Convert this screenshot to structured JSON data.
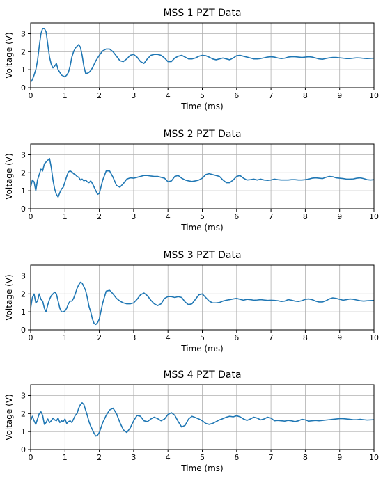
{
  "chart_data": [
    {
      "type": "line",
      "title": "MSS 1 PZT Data",
      "xlabel": "Time (ms)",
      "ylabel": "Voltage (V)",
      "xlim": [
        0,
        10
      ],
      "ylim": [
        0,
        3.6
      ],
      "xticks": [
        "0",
        "1",
        "2",
        "3",
        "4",
        "5",
        "6",
        "7",
        "8",
        "9",
        "10"
      ],
      "yticks": [
        "0",
        "1",
        "2",
        "3"
      ],
      "grid": true,
      "color": "#1f77b4",
      "series": [
        {
          "x": [
            0,
            0.05,
            0.1,
            0.15,
            0.2,
            0.25,
            0.3,
            0.35,
            0.4,
            0.45,
            0.5,
            0.55,
            0.6,
            0.65,
            0.7,
            0.75,
            0.8,
            0.85,
            0.9,
            0.95,
            1.0,
            1.05,
            1.1,
            1.15,
            1.2,
            1.25,
            1.3,
            1.35,
            1.4,
            1.45,
            1.5,
            1.55,
            1.6,
            1.65,
            1.7,
            1.75,
            1.8,
            1.85,
            1.9,
            1.95,
            2.0,
            2.1,
            2.2,
            2.3,
            2.4,
            2.5,
            2.6,
            2.7,
            2.8,
            2.9,
            3.0,
            3.1,
            3.2,
            3.3,
            3.4,
            3.5,
            3.6,
            3.7,
            3.8,
            3.9,
            4.0,
            4.1,
            4.2,
            4.3,
            4.4,
            4.5,
            4.6,
            4.7,
            4.8,
            4.9,
            5.0,
            5.1,
            5.2,
            5.3,
            5.4,
            5.5,
            5.6,
            5.7,
            5.8,
            5.9,
            6.0,
            6.1,
            6.2,
            6.3,
            6.4,
            6.5,
            6.6,
            6.7,
            6.8,
            6.9,
            7.0,
            7.1,
            7.2,
            7.3,
            7.4,
            7.5,
            7.6,
            7.7,
            7.8,
            7.9,
            8.0,
            8.1,
            8.2,
            8.3,
            8.4,
            8.5,
            8.6,
            8.7,
            8.8,
            8.9,
            9.0,
            9.1,
            9.2,
            9.3,
            9.4,
            9.5,
            9.6,
            9.7,
            9.8,
            9.9,
            10.0
          ],
          "y": [
            0.3,
            0.45,
            0.7,
            1.0,
            1.5,
            2.3,
            3.0,
            3.3,
            3.3,
            3.1,
            2.4,
            1.7,
            1.3,
            1.1,
            1.2,
            1.35,
            1.0,
            0.85,
            0.7,
            0.65,
            0.6,
            0.7,
            0.85,
            1.2,
            1.7,
            2.0,
            2.2,
            2.3,
            2.4,
            2.25,
            1.8,
            1.2,
            0.8,
            0.8,
            0.85,
            0.95,
            1.1,
            1.3,
            1.5,
            1.65,
            1.8,
            2.05,
            2.15,
            2.15,
            2.0,
            1.75,
            1.5,
            1.45,
            1.6,
            1.8,
            1.85,
            1.7,
            1.45,
            1.35,
            1.6,
            1.8,
            1.85,
            1.85,
            1.8,
            1.65,
            1.45,
            1.45,
            1.65,
            1.75,
            1.8,
            1.7,
            1.6,
            1.6,
            1.65,
            1.75,
            1.8,
            1.78,
            1.7,
            1.6,
            1.55,
            1.6,
            1.65,
            1.6,
            1.55,
            1.65,
            1.78,
            1.8,
            1.75,
            1.7,
            1.65,
            1.6,
            1.6,
            1.62,
            1.66,
            1.7,
            1.72,
            1.7,
            1.65,
            1.62,
            1.64,
            1.7,
            1.72,
            1.72,
            1.7,
            1.68,
            1.7,
            1.72,
            1.7,
            1.65,
            1.6,
            1.58,
            1.62,
            1.66,
            1.68,
            1.68,
            1.66,
            1.64,
            1.62,
            1.62,
            1.64,
            1.66,
            1.65,
            1.63,
            1.62,
            1.63,
            1.64
          ]
        }
      ]
    },
    {
      "type": "line",
      "title": "MSS 2 PZT Data",
      "xlabel": "Time (ms)",
      "ylabel": "Voltage (V)",
      "xlim": [
        0,
        10
      ],
      "ylim": [
        0,
        3.6
      ],
      "xticks": [
        "0",
        "1",
        "2",
        "3",
        "4",
        "5",
        "6",
        "7",
        "8",
        "9",
        "10"
      ],
      "yticks": [
        "0",
        "1",
        "2",
        "3"
      ],
      "grid": true,
      "color": "#1f77b4",
      "series": [
        {
          "x": [
            0,
            0.05,
            0.1,
            0.15,
            0.2,
            0.25,
            0.3,
            0.35,
            0.4,
            0.45,
            0.5,
            0.55,
            0.6,
            0.65,
            0.7,
            0.75,
            0.8,
            0.85,
            0.9,
            0.95,
            1.0,
            1.05,
            1.1,
            1.15,
            1.2,
            1.25,
            1.3,
            1.35,
            1.4,
            1.45,
            1.5,
            1.55,
            1.6,
            1.65,
            1.7,
            1.75,
            1.8,
            1.85,
            1.9,
            1.95,
            2.0,
            2.1,
            2.2,
            2.3,
            2.4,
            2.5,
            2.6,
            2.7,
            2.8,
            2.9,
            3.0,
            3.1,
            3.2,
            3.3,
            3.4,
            3.5,
            3.6,
            3.7,
            3.8,
            3.9,
            4.0,
            4.1,
            4.2,
            4.3,
            4.4,
            4.5,
            4.6,
            4.7,
            4.8,
            4.9,
            5.0,
            5.1,
            5.2,
            5.3,
            5.4,
            5.5,
            5.6,
            5.7,
            5.8,
            5.9,
            6.0,
            6.1,
            6.2,
            6.3,
            6.4,
            6.5,
            6.6,
            6.7,
            6.8,
            6.9,
            7.0,
            7.1,
            7.2,
            7.3,
            7.4,
            7.5,
            7.6,
            7.7,
            7.8,
            7.9,
            8.0,
            8.1,
            8.2,
            8.3,
            8.4,
            8.5,
            8.6,
            8.7,
            8.8,
            8.9,
            9.0,
            9.1,
            9.2,
            9.3,
            9.4,
            9.5,
            9.6,
            9.7,
            9.8,
            9.9,
            10.0
          ],
          "y": [
            1.2,
            1.6,
            1.5,
            1.0,
            1.6,
            1.9,
            2.2,
            2.1,
            2.5,
            2.6,
            2.7,
            2.8,
            2.3,
            1.6,
            1.1,
            0.8,
            0.65,
            0.9,
            1.1,
            1.2,
            1.5,
            1.8,
            2.05,
            2.1,
            2.05,
            1.95,
            1.9,
            1.8,
            1.75,
            1.6,
            1.65,
            1.55,
            1.6,
            1.5,
            1.45,
            1.55,
            1.4,
            1.2,
            1.0,
            0.8,
            0.85,
            1.6,
            2.1,
            2.1,
            1.75,
            1.3,
            1.2,
            1.4,
            1.65,
            1.72,
            1.7,
            1.75,
            1.8,
            1.85,
            1.85,
            1.82,
            1.8,
            1.8,
            1.75,
            1.7,
            1.5,
            1.55,
            1.8,
            1.85,
            1.7,
            1.6,
            1.55,
            1.52,
            1.55,
            1.6,
            1.7,
            1.9,
            1.95,
            1.9,
            1.85,
            1.8,
            1.6,
            1.45,
            1.45,
            1.6,
            1.8,
            1.85,
            1.7,
            1.6,
            1.62,
            1.65,
            1.6,
            1.65,
            1.6,
            1.58,
            1.6,
            1.65,
            1.62,
            1.6,
            1.6,
            1.6,
            1.62,
            1.62,
            1.6,
            1.6,
            1.62,
            1.65,
            1.7,
            1.72,
            1.7,
            1.68,
            1.75,
            1.8,
            1.78,
            1.72,
            1.7,
            1.68,
            1.65,
            1.65,
            1.66,
            1.7,
            1.72,
            1.68,
            1.62,
            1.6,
            1.62
          ]
        }
      ]
    },
    {
      "type": "line",
      "title": "MSS 3 PZT Data",
      "xlabel": "Time (ms)",
      "ylabel": "Voltage (V)",
      "xlim": [
        0,
        10
      ],
      "ylim": [
        0,
        3.6
      ],
      "xticks": [
        "0",
        "1",
        "2",
        "3",
        "4",
        "5",
        "6",
        "7",
        "8",
        "9",
        "10"
      ],
      "yticks": [
        "0",
        "1",
        "2",
        "3"
      ],
      "grid": true,
      "color": "#1f77b4",
      "series": [
        {
          "x": [
            0,
            0.05,
            0.1,
            0.15,
            0.2,
            0.25,
            0.3,
            0.35,
            0.4,
            0.45,
            0.5,
            0.55,
            0.6,
            0.65,
            0.7,
            0.75,
            0.8,
            0.85,
            0.9,
            0.95,
            1.0,
            1.05,
            1.1,
            1.15,
            1.2,
            1.25,
            1.3,
            1.35,
            1.4,
            1.45,
            1.5,
            1.55,
            1.6,
            1.65,
            1.7,
            1.75,
            1.8,
            1.85,
            1.9,
            1.95,
            2.0,
            2.1,
            2.2,
            2.3,
            2.4,
            2.5,
            2.6,
            2.7,
            2.8,
            2.9,
            3.0,
            3.1,
            3.2,
            3.3,
            3.4,
            3.5,
            3.6,
            3.7,
            3.8,
            3.9,
            4.0,
            4.1,
            4.2,
            4.3,
            4.4,
            4.5,
            4.6,
            4.7,
            4.8,
            4.9,
            5.0,
            5.1,
            5.2,
            5.3,
            5.4,
            5.5,
            5.6,
            5.7,
            5.8,
            5.9,
            6.0,
            6.1,
            6.2,
            6.3,
            6.4,
            6.5,
            6.6,
            6.7,
            6.8,
            6.9,
            7.0,
            7.1,
            7.2,
            7.3,
            7.4,
            7.5,
            7.6,
            7.7,
            7.8,
            7.9,
            8.0,
            8.1,
            8.2,
            8.3,
            8.4,
            8.5,
            8.6,
            8.7,
            8.8,
            8.9,
            9.0,
            9.1,
            9.2,
            9.3,
            9.4,
            9.5,
            9.6,
            9.7,
            9.8,
            9.9,
            10.0
          ],
          "y": [
            1.2,
            1.8,
            2.0,
            1.5,
            1.6,
            2.0,
            1.7,
            1.6,
            1.2,
            1.0,
            1.4,
            1.7,
            1.9,
            2.0,
            2.1,
            2.0,
            1.6,
            1.2,
            1.0,
            1.0,
            1.05,
            1.2,
            1.45,
            1.6,
            1.6,
            1.75,
            2.0,
            2.3,
            2.5,
            2.65,
            2.6,
            2.4,
            2.2,
            1.8,
            1.3,
            1.0,
            0.6,
            0.35,
            0.3,
            0.4,
            0.6,
            1.5,
            2.15,
            2.2,
            2.0,
            1.75,
            1.6,
            1.5,
            1.45,
            1.45,
            1.5,
            1.7,
            1.95,
            2.05,
            1.9,
            1.65,
            1.45,
            1.35,
            1.45,
            1.75,
            1.85,
            1.85,
            1.8,
            1.85,
            1.8,
            1.55,
            1.4,
            1.45,
            1.7,
            1.95,
            2.0,
            1.8,
            1.6,
            1.5,
            1.5,
            1.52,
            1.6,
            1.65,
            1.68,
            1.72,
            1.75,
            1.7,
            1.65,
            1.7,
            1.68,
            1.65,
            1.66,
            1.68,
            1.66,
            1.64,
            1.65,
            1.64,
            1.62,
            1.58,
            1.6,
            1.68,
            1.65,
            1.6,
            1.58,
            1.62,
            1.7,
            1.72,
            1.68,
            1.6,
            1.55,
            1.55,
            1.62,
            1.72,
            1.78,
            1.75,
            1.7,
            1.65,
            1.68,
            1.72,
            1.7,
            1.66,
            1.62,
            1.6,
            1.62,
            1.63,
            1.64
          ]
        }
      ]
    },
    {
      "type": "line",
      "title": "MSS 4 PZT Data",
      "xlabel": "Time (ms)",
      "ylabel": "Voltage (V)",
      "xlim": [
        0,
        10
      ],
      "ylim": [
        0,
        3.6
      ],
      "xticks": [
        "0",
        "1",
        "2",
        "3",
        "4",
        "5",
        "6",
        "7",
        "8",
        "9",
        "10"
      ],
      "yticks": [
        "0",
        "1",
        "2",
        "3"
      ],
      "grid": true,
      "color": "#1f77b4",
      "series": [
        {
          "x": [
            0,
            0.05,
            0.1,
            0.15,
            0.2,
            0.25,
            0.3,
            0.35,
            0.4,
            0.45,
            0.5,
            0.55,
            0.6,
            0.65,
            0.7,
            0.75,
            0.8,
            0.85,
            0.9,
            0.95,
            1.0,
            1.05,
            1.1,
            1.15,
            1.2,
            1.25,
            1.3,
            1.35,
            1.4,
            1.45,
            1.5,
            1.55,
            1.6,
            1.65,
            1.7,
            1.75,
            1.8,
            1.85,
            1.9,
            1.95,
            2.0,
            2.1,
            2.2,
            2.3,
            2.4,
            2.5,
            2.6,
            2.7,
            2.8,
            2.9,
            3.0,
            3.1,
            3.2,
            3.3,
            3.4,
            3.5,
            3.6,
            3.7,
            3.8,
            3.9,
            4.0,
            4.1,
            4.2,
            4.3,
            4.4,
            4.5,
            4.6,
            4.7,
            4.8,
            4.9,
            5.0,
            5.1,
            5.2,
            5.3,
            5.4,
            5.5,
            5.6,
            5.7,
            5.8,
            5.9,
            6.0,
            6.1,
            6.2,
            6.3,
            6.4,
            6.5,
            6.6,
            6.7,
            6.8,
            6.9,
            7.0,
            7.1,
            7.2,
            7.3,
            7.4,
            7.5,
            7.6,
            7.7,
            7.8,
            7.9,
            8.0,
            8.1,
            8.2,
            8.3,
            8.4,
            8.5,
            8.6,
            8.7,
            8.8,
            8.9,
            9.0,
            9.1,
            9.2,
            9.3,
            9.4,
            9.5,
            9.6,
            9.7,
            9.8,
            9.9,
            10.0
          ],
          "y": [
            1.6,
            1.85,
            1.6,
            1.4,
            1.7,
            2.0,
            2.1,
            1.9,
            1.4,
            1.5,
            1.7,
            1.5,
            1.6,
            1.75,
            1.65,
            1.6,
            1.75,
            1.5,
            1.6,
            1.55,
            1.7,
            1.45,
            1.55,
            1.6,
            1.5,
            1.7,
            1.9,
            2.0,
            2.3,
            2.5,
            2.6,
            2.5,
            2.2,
            1.9,
            1.55,
            1.3,
            1.1,
            0.9,
            0.75,
            0.8,
            0.95,
            1.5,
            1.9,
            2.2,
            2.3,
            2.0,
            1.5,
            1.1,
            0.95,
            1.2,
            1.6,
            1.9,
            1.85,
            1.6,
            1.55,
            1.7,
            1.8,
            1.72,
            1.6,
            1.7,
            1.95,
            2.05,
            1.9,
            1.55,
            1.25,
            1.35,
            1.7,
            1.85,
            1.78,
            1.7,
            1.6,
            1.45,
            1.4,
            1.45,
            1.55,
            1.65,
            1.72,
            1.8,
            1.85,
            1.82,
            1.88,
            1.82,
            1.7,
            1.62,
            1.7,
            1.8,
            1.75,
            1.65,
            1.7,
            1.8,
            1.75,
            1.6,
            1.62,
            1.6,
            1.58,
            1.62,
            1.6,
            1.55,
            1.6,
            1.68,
            1.65,
            1.58,
            1.6,
            1.62,
            1.6,
            1.62,
            1.64,
            1.66,
            1.68,
            1.7,
            1.72,
            1.72,
            1.7,
            1.68,
            1.66,
            1.66,
            1.68,
            1.66,
            1.64,
            1.65,
            1.66
          ]
        }
      ]
    }
  ]
}
